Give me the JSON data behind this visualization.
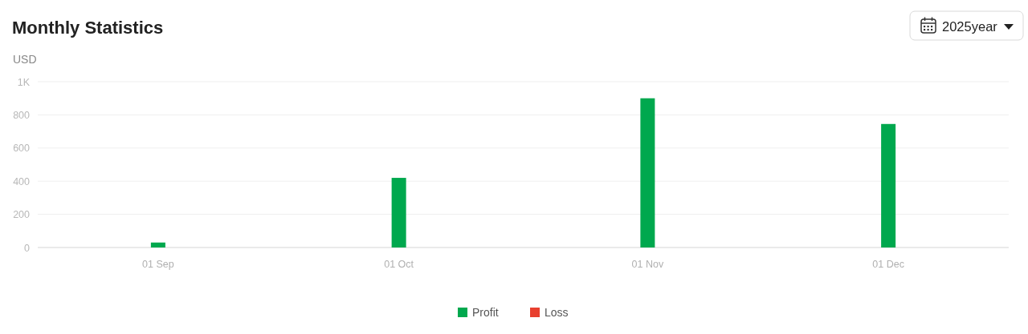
{
  "chart_data": {
    "type": "bar",
    "title": "Monthly Statistics",
    "ylabel": "USD",
    "x": [
      "2025-09-01",
      "2025-10-01",
      "2025-11-01",
      "2025-12-01"
    ],
    "xlim": [
      "2025-08-17",
      "2025-12-16"
    ],
    "xticks": [
      {
        "value": "2025-09-01",
        "label": "01 Sep"
      },
      {
        "value": "2025-10-01",
        "label": "01 Oct"
      },
      {
        "value": "2025-11-01",
        "label": "01 Nov"
      },
      {
        "value": "2025-12-01",
        "label": "01 Dec"
      }
    ],
    "series": [
      {
        "name": "Profit",
        "color": "#00a84e",
        "values": [
          30,
          420,
          900,
          745
        ]
      },
      {
        "name": "Loss",
        "color": "#e8402f",
        "values": [
          null,
          null,
          null,
          null
        ]
      }
    ],
    "stacked": true,
    "ylim": [
      0,
      1000
    ],
    "yticks": [
      0,
      200,
      400,
      600,
      800,
      {
        "value": 1000,
        "label": "1K"
      }
    ],
    "grid": "y",
    "legend": "bottom",
    "annotations": [
      "2025year"
    ]
  }
}
